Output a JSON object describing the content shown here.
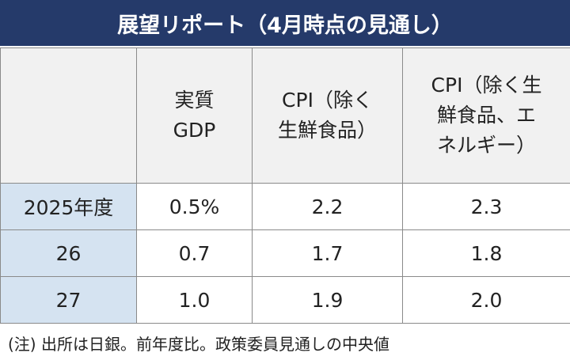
{
  "title": "展望リポート（4月時点の見通し）",
  "table": {
    "header": [
      [],
      [
        "実質",
        "GDP"
      ],
      [
        "CPI（除く",
        "生鮮食品）"
      ],
      [
        "CPI（除く生",
        "鮮食品、エ",
        "ネルギー）"
      ]
    ],
    "rows": [
      [
        "2025年度",
        "0.5%",
        "2.2",
        "2.3"
      ],
      [
        "26",
        "0.7",
        "1.7",
        "1.8"
      ],
      [
        "27",
        "1.0",
        "1.9",
        "2.0"
      ]
    ]
  },
  "note": "(注) 出所は日銀。前年度比。政策委員見通しの中央値"
}
